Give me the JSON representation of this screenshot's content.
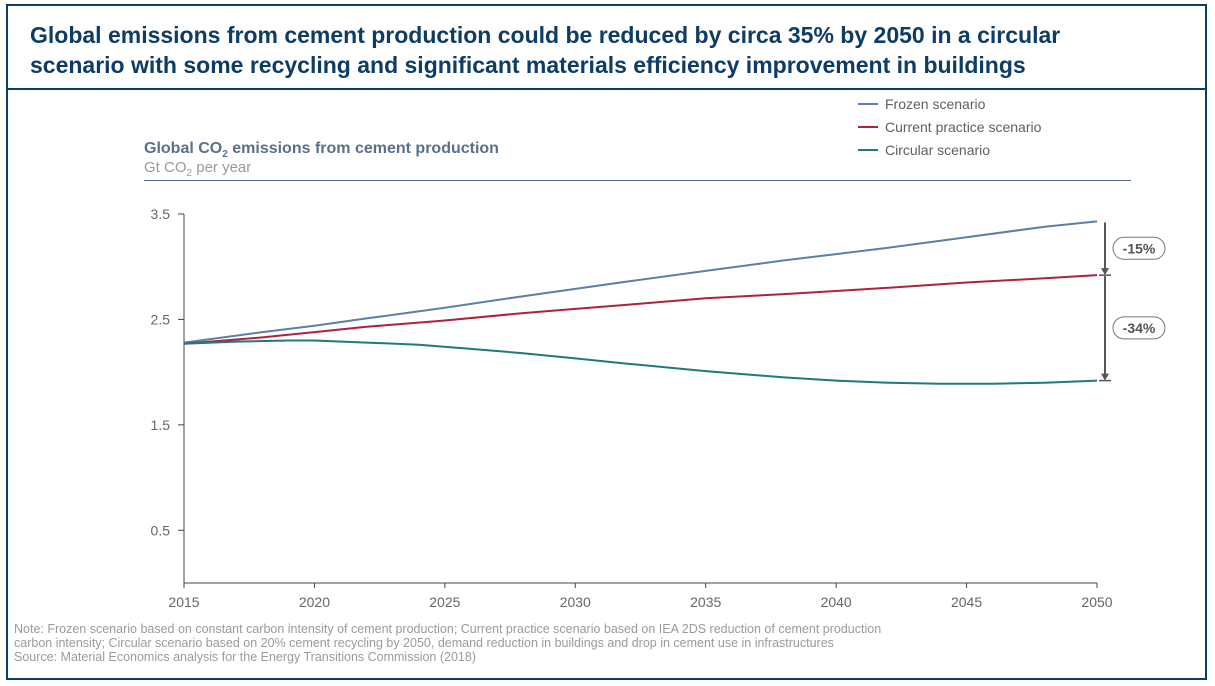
{
  "title": {
    "line1": "Global emissions from cement production could be reduced by circa 35% by 2050 in a circular",
    "line2": "scenario with some recycling and significant materials efficiency improvement in buildings"
  },
  "chart_title": {
    "prefix": "Global CO",
    "sub": "2",
    "suffix": " emissions from cement production"
  },
  "chart_unit": {
    "prefix": "Gt CO",
    "sub": "2",
    "suffix": " per year"
  },
  "footnote": {
    "line1": "Note: Frozen scenario based on constant carbon intensity of cement production; Current practice scenario based on IEA 2DS reduction of cement production",
    "line2": "carbon intensity; Circular scenario based on 20% cement recycling by 2050, demand reduction in buildings and drop in cement use in infrastructures",
    "line3": "Source: Material Economics analysis for the Energy Transitions Commission (2018)"
  },
  "chart_data": {
    "type": "line",
    "title": "Global CO2 emissions from cement production",
    "ylabel": "Gt CO2 per year",
    "xlim": [
      2015,
      2050
    ],
    "ylim": [
      0,
      3.5
    ],
    "yticks": [
      0.5,
      1.5,
      2.5,
      3.5
    ],
    "xticks": [
      2015,
      2020,
      2025,
      2030,
      2035,
      2040,
      2045,
      2050
    ],
    "legend_position": "top-right",
    "series": [
      {
        "name": "Frozen scenario",
        "color": "#5b7fa6",
        "x": [
          2015,
          2018,
          2020,
          2022,
          2025,
          2028,
          2030,
          2032,
          2035,
          2038,
          2040,
          2042,
          2045,
          2048,
          2050
        ],
        "y": [
          2.28,
          2.38,
          2.44,
          2.51,
          2.61,
          2.72,
          2.79,
          2.86,
          2.96,
          3.06,
          3.12,
          3.18,
          3.28,
          3.38,
          3.43
        ]
      },
      {
        "name": "Current practice scenario",
        "color": "#b0203f",
        "x": [
          2015,
          2018,
          2020,
          2022,
          2025,
          2028,
          2030,
          2032,
          2035,
          2038,
          2040,
          2042,
          2045,
          2048,
          2050
        ],
        "y": [
          2.27,
          2.33,
          2.38,
          2.43,
          2.49,
          2.56,
          2.6,
          2.64,
          2.7,
          2.74,
          2.77,
          2.8,
          2.85,
          2.89,
          2.92
        ]
      },
      {
        "name": "Circular scenario",
        "color": "#1f7a78",
        "x": [
          2015,
          2017,
          2019,
          2020,
          2022,
          2024,
          2026,
          2028,
          2030,
          2032,
          2035,
          2038,
          2040,
          2042,
          2044,
          2046,
          2048,
          2050
        ],
        "y": [
          2.27,
          2.29,
          2.3,
          2.3,
          2.28,
          2.26,
          2.22,
          2.18,
          2.13,
          2.08,
          2.01,
          1.95,
          1.92,
          1.9,
          1.89,
          1.89,
          1.9,
          1.92
        ]
      }
    ],
    "annotations": [
      {
        "label": "-15%",
        "from_y": 3.43,
        "to_y": 2.92,
        "x": 2050
      },
      {
        "label": "-34%",
        "from_y": 2.92,
        "to_y": 1.92,
        "x": 2050
      }
    ]
  }
}
